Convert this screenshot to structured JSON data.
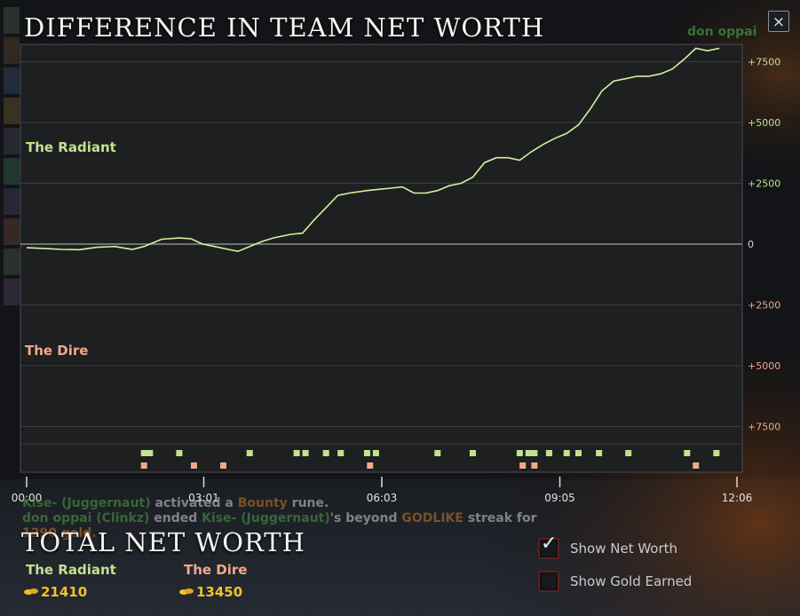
{
  "window": {
    "title": "DIFFERENCE IN TEAM NET WORTH",
    "close_label": "×",
    "corner_player": "don oppai"
  },
  "teams": {
    "radiant": "The Radiant",
    "dire": "The Dire"
  },
  "colors": {
    "radiant": "#c3e28f",
    "dire": "#f0a98a",
    "line": "#d7f0a0",
    "gold": "#f2c22a",
    "grid": "#3a3d41"
  },
  "chart_data": {
    "type": "line",
    "title": "DIFFERENCE IN TEAM NET WORTH",
    "x_ticks": [
      "00:00",
      "03:01",
      "06:03",
      "09:05",
      "12:06"
    ],
    "x_ticks_minutes": [
      0,
      3.017,
      6.05,
      9.083,
      12.1
    ],
    "y_tick_labels": [
      "+7500",
      "+5000",
      "+2500",
      "0",
      "+2500",
      "+5000",
      "+7500"
    ],
    "y_tick_values": [
      7500,
      5000,
      2500,
      0,
      -2500,
      -5000,
      -7500
    ],
    "ylim": [
      -8500,
      8500
    ],
    "xlim": [
      0,
      12.1
    ],
    "grid": true,
    "series": [
      {
        "x": [
          0,
          0.3,
          0.6,
          0.9,
          1.2,
          1.5,
          1.8,
          2.0,
          2.3,
          2.6,
          2.8,
          3.0,
          3.2,
          3.4,
          3.6,
          3.8,
          4.0,
          4.2,
          4.5,
          4.7,
          4.9,
          5.1,
          5.3,
          5.5,
          5.8,
          6.0,
          6.2,
          6.4,
          6.6,
          6.8,
          7.0,
          7.2,
          7.4,
          7.6,
          7.8,
          8.0,
          8.2,
          8.4,
          8.6,
          8.8,
          9.0,
          9.2,
          9.4,
          9.6,
          9.8,
          10.0,
          10.2,
          10.4,
          10.6,
          10.8,
          11.0,
          11.2,
          11.4,
          11.6,
          11.8
        ],
        "y": [
          -150,
          -180,
          -220,
          -230,
          -130,
          -100,
          -220,
          -100,
          200,
          250,
          220,
          0,
          -100,
          -200,
          -300,
          -100,
          100,
          250,
          400,
          450,
          1000,
          1500,
          2000,
          2100,
          2200,
          2250,
          2300,
          2350,
          2100,
          2100,
          2200,
          2400,
          2500,
          2750,
          3350,
          3550,
          3550,
          3450,
          3800,
          4100,
          4350,
          4550,
          4900,
          5550,
          6300,
          6700,
          6800,
          6900,
          6900,
          7000,
          7200,
          7600,
          8050,
          7950,
          8050
        ]
      }
    ],
    "event_markers": {
      "radiant_minutes": [
        2.0,
        2.1,
        2.6,
        3.8,
        4.6,
        4.75,
        5.1,
        5.35,
        5.8,
        5.95,
        7.0,
        7.6,
        8.4,
        8.55,
        8.65,
        8.9,
        9.2,
        9.4,
        9.75,
        10.25,
        11.25,
        11.75
      ],
      "dire_minutes": [
        2.0,
        2.85,
        3.35,
        5.85,
        8.45,
        8.65,
        11.4
      ]
    }
  },
  "feed": {
    "line1": {
      "p1": "Kise- (Juggernaut)",
      "mid": " activated a ",
      "item": "Bounty",
      "end": " rune."
    },
    "line2": {
      "p1": "don oppai (Clinkz)",
      "mid": " ended ",
      "p2": "Kise- (Juggernaut)",
      "mid2": "'s beyond ",
      "item": "GODLIKE",
      "end": " streak for"
    },
    "line3": "1290 gold."
  },
  "totals": {
    "title": "TOTAL NET WORTH",
    "radiant_value": "21410",
    "dire_value": "13450"
  },
  "options": {
    "show_net_worth": "Show Net Worth",
    "show_gold_earned": "Show Gold Earned",
    "net_worth_checked": true,
    "gold_checked": false
  }
}
